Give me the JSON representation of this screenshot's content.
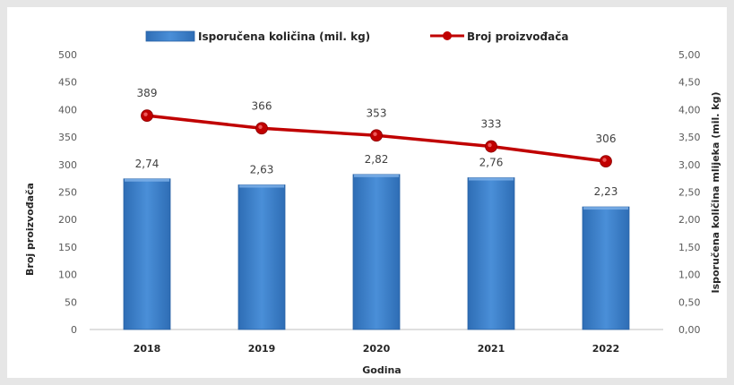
{
  "chart_data": {
    "type": "bar",
    "categories": [
      "2018",
      "2019",
      "2020",
      "2021",
      "2022"
    ],
    "xlabel": "Godina",
    "ylabel": "Broj proizvođača",
    "y2label": "Isporučena količina mlijeka (mil. kg)",
    "ylim": [
      0,
      500
    ],
    "y2lim": [
      0,
      5
    ],
    "y_ticks": [
      "0",
      "50",
      "100",
      "150",
      "200",
      "250",
      "300",
      "350",
      "400",
      "450",
      "500"
    ],
    "y2_ticks": [
      "0,00",
      "0,50",
      "1,00",
      "1,50",
      "2,00",
      "2,50",
      "3,00",
      "3,50",
      "4,00",
      "4,50",
      "5,00"
    ],
    "legend_position": "top",
    "series": [
      {
        "name": "Isporučena količina (mil. kg)",
        "kind": "bar",
        "axis": "right",
        "color": "#3a7cc8",
        "values": [
          2.74,
          2.63,
          2.82,
          2.76,
          2.23
        ],
        "labels": [
          "2,74",
          "2,63",
          "2,82",
          "2,76",
          "2,23"
        ]
      },
      {
        "name": "Broj proizvođača",
        "kind": "line",
        "axis": "left",
        "color": "#c00000",
        "values": [
          389,
          366,
          353,
          333,
          306
        ],
        "labels": [
          "389",
          "366",
          "353",
          "333",
          "306"
        ]
      }
    ]
  }
}
